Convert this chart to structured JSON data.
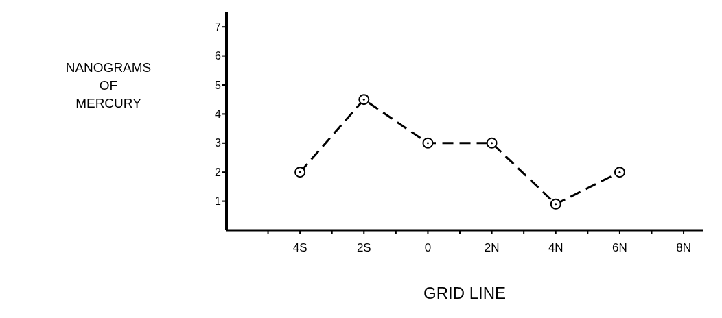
{
  "chart_data": {
    "type": "line",
    "xlabel": "GRID LINE",
    "ylabel": "NANOGRAMS OF MERCURY",
    "x": [
      -4,
      -2,
      0,
      2,
      4,
      6
    ],
    "series": [
      {
        "color": "#000000",
        "values": [
          2,
          4.5,
          3,
          3,
          0.9,
          2
        ]
      }
    ],
    "xlim": [
      -6.3,
      8.6
    ],
    "xticks": [
      {
        "value": -5,
        "label": null
      },
      {
        "value": -4,
        "label": "4S"
      },
      {
        "value": -3,
        "label": null
      },
      {
        "value": -2,
        "label": "2S"
      },
      {
        "value": -1,
        "label": null
      },
      0,
      {
        "value": 1,
        "label": null
      },
      {
        "value": 2,
        "label": "2N"
      },
      {
        "value": 3,
        "label": null
      },
      {
        "value": 4,
        "label": "4N"
      },
      {
        "value": 5,
        "label": null
      },
      {
        "value": 6,
        "label": "6N"
      },
      {
        "value": 7,
        "label": null
      },
      {
        "value": 8,
        "label": "8N"
      }
    ],
    "ylim": [
      0,
      7.5
    ],
    "yticks": [
      1,
      2,
      3,
      4,
      5,
      6,
      7
    ],
    "grid": false,
    "legend": false,
    "marker": "circle",
    "line_style": "dashed"
  }
}
